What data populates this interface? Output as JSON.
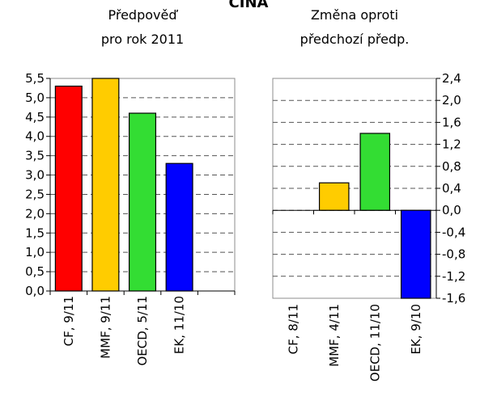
{
  "title": "ČÍNA",
  "chart_data": [
    {
      "type": "bar",
      "subtitle_lines": [
        "Předpověď",
        "pro rok 2011"
      ],
      "categories": [
        "CF, 9/11",
        "MMF, 9/11",
        "OECD, 5/11",
        "EK, 11/10",
        ""
      ],
      "values": [
        5.3,
        5.5,
        4.6,
        3.3,
        null
      ],
      "colors": [
        "#ff0000",
        "#ffcc00",
        "#33dd33",
        "#0000ff",
        null
      ],
      "ylim": [
        0,
        5.5
      ],
      "yticks": [
        "0,0",
        "0,5",
        "1,0",
        "1,5",
        "2,0",
        "2,5",
        "3,0",
        "3,5",
        "4,0",
        "4,5",
        "5,0",
        "5,5"
      ],
      "grid": true
    },
    {
      "type": "bar",
      "subtitle_lines": [
        "Změna oproti",
        "předchozí předp."
      ],
      "categories": [
        "CF, 8/11",
        "MMF, 4/11",
        "OECD, 11/10",
        "EK, 9/10"
      ],
      "values": [
        0.0,
        0.5,
        1.4,
        -1.6
      ],
      "colors": [
        "#ff0000",
        "#ffcc00",
        "#33dd33",
        "#0000ff"
      ],
      "ylim": [
        -1.6,
        2.4
      ],
      "yticks": [
        "-1,6",
        "-1,2",
        "-0,8",
        "-0,4",
        "0,0",
        "0,4",
        "0,8",
        "1,2",
        "1,6",
        "2,0",
        "2,4"
      ],
      "grid": true
    }
  ]
}
